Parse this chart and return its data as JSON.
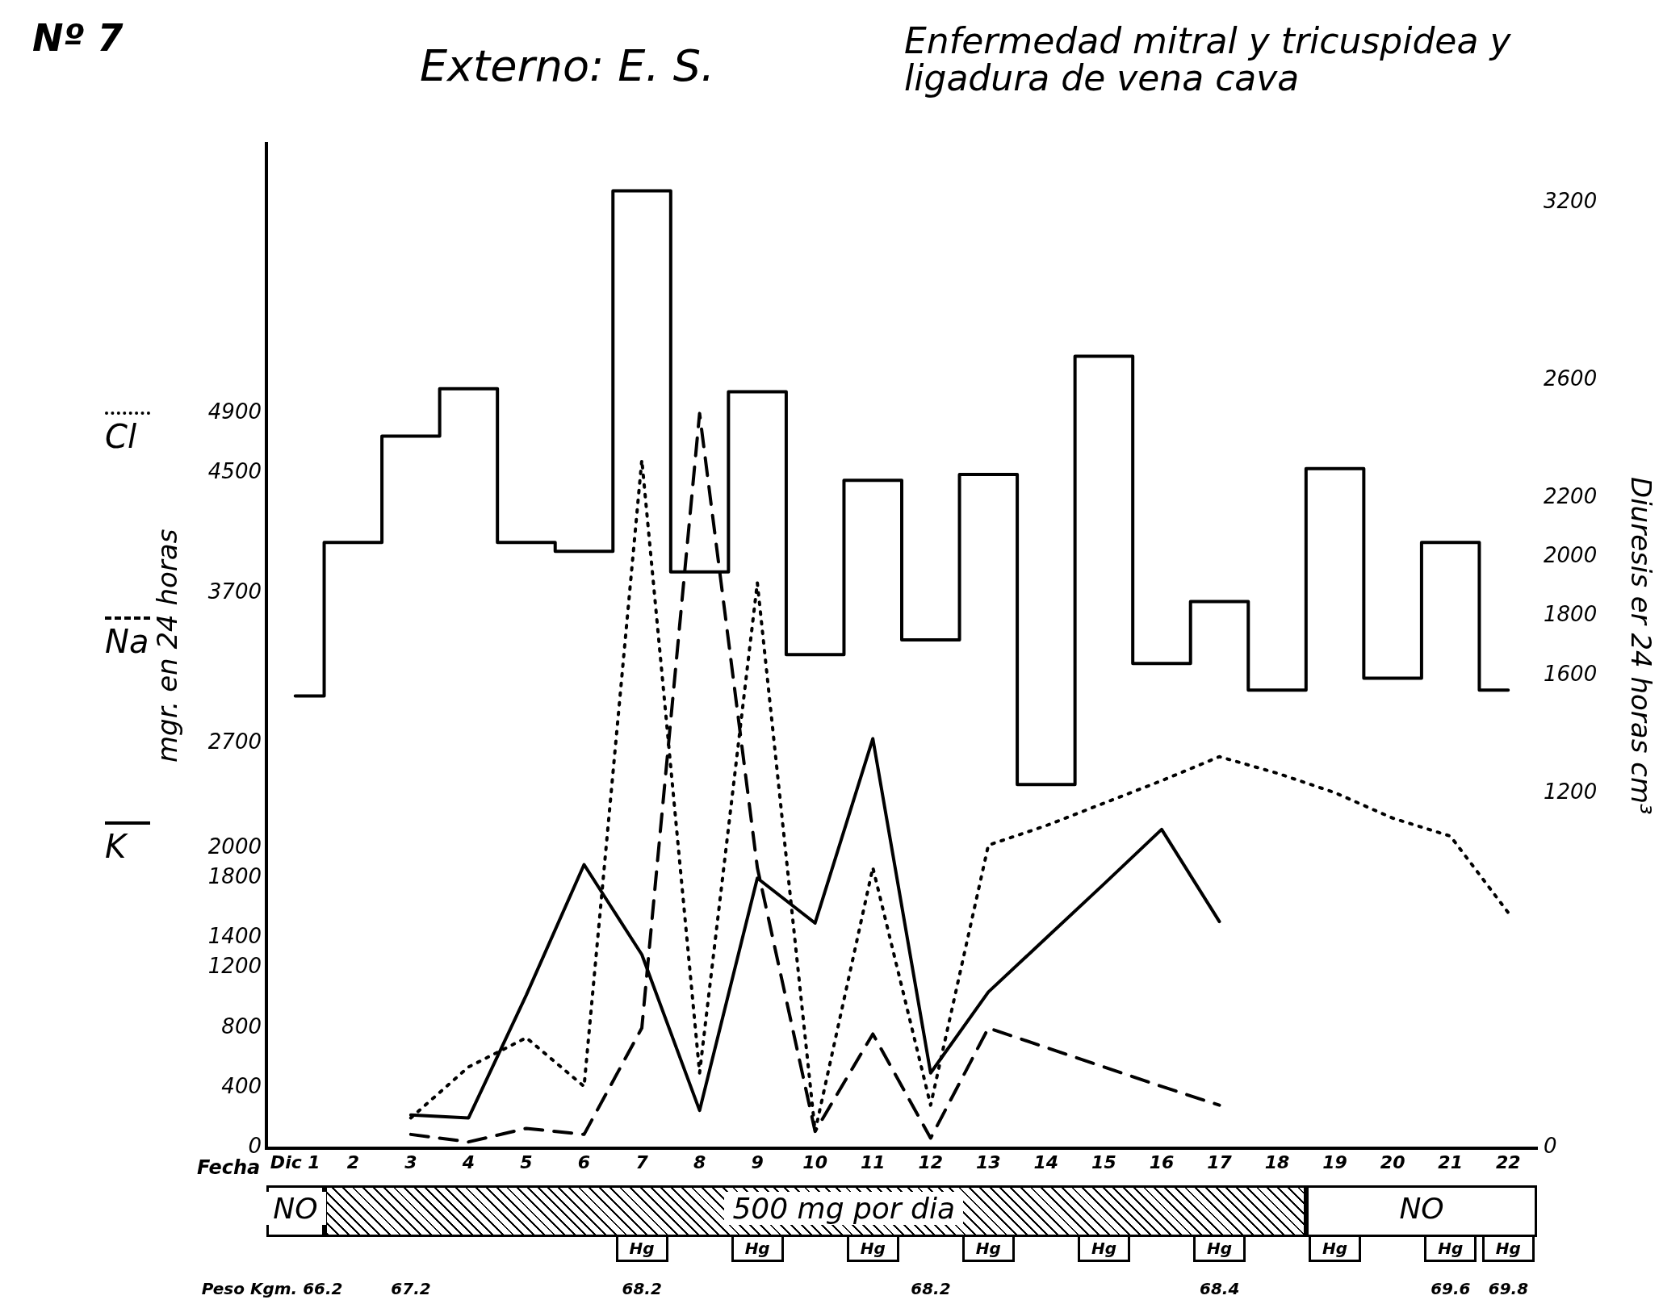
{
  "chart_data": {
    "type": "line",
    "title": "Externo: E. S.",
    "subtitle": "Enfermedad mitral y tricuspidea y ligadura de vena cava",
    "xlabel": "Fecha",
    "ylabel": "mgr. en 24 horas",
    "y2label": "Diuresis er 24 horas cm³",
    "categories": [
      "Dic 1",
      "2",
      "3",
      "4",
      "5",
      "6",
      "7",
      "8",
      "9",
      "10",
      "11",
      "12",
      "13",
      "14",
      "15",
      "16",
      "17",
      "18",
      "19",
      "20",
      "21",
      "22"
    ],
    "series": [
      {
        "type": "step",
        "axis": "y2",
        "color": "#000000",
        "line_style": "solid",
        "values": [
          1530,
          2050,
          2410,
          2570,
          2050,
          2020,
          3240,
          1950,
          2560,
          1670,
          2260,
          1720,
          2280,
          1230,
          2680,
          1640,
          1850,
          1550,
          2300,
          1590,
          2050,
          1550
        ]
      },
      {
        "name": "Cl",
        "color": "#000000",
        "line_style": "dotted",
        "values": [
          null,
          null,
          200,
          540,
          735,
          410,
          4590,
          500,
          3770,
          110,
          1870,
          285,
          2020,
          2150,
          2300,
          2450,
          2610,
          2500,
          2370,
          2200,
          2080,
          1570
        ]
      },
      {
        "name": "Na",
        "color": "#000000",
        "line_style": "dashed",
        "values": [
          null,
          null,
          90,
          40,
          130,
          90,
          800,
          4900,
          1870,
          110,
          760,
          65,
          800,
          670,
          540,
          410,
          285,
          null,
          null,
          null,
          null,
          null
        ]
      },
      {
        "name": "K",
        "color": "#000000",
        "line_style": "solid",
        "values": [
          null,
          null,
          220,
          200,
          1020,
          1890,
          1290,
          250,
          1800,
          1500,
          2730,
          500,
          1040,
          1400,
          1760,
          2125,
          1510,
          null,
          null,
          null,
          null,
          null
        ]
      }
    ],
    "ylim": [
      0,
      6700
    ],
    "yticks": [
      0,
      400,
      800,
      1200,
      1400,
      1800,
      2000,
      2700,
      3700,
      4500,
      4900
    ],
    "y2lim": [
      0,
      3400
    ],
    "y2ticks": [
      0,
      1200,
      1600,
      1800,
      2000,
      2200,
      2600,
      3200
    ],
    "grid": false,
    "legend": "left",
    "marker": "none",
    "annotations": [
      "Nº 7",
      "NO",
      "500 mg por dia",
      "NO",
      "Hg",
      "Hg",
      "Hg",
      "Hg",
      "Hg",
      "Hg",
      "Hg",
      "Hg",
      "Hg",
      "Peso Kgm. 66.2",
      "67.2",
      "68.2",
      "68.2",
      "68.4",
      "69.6",
      "69.8"
    ]
  }
}
